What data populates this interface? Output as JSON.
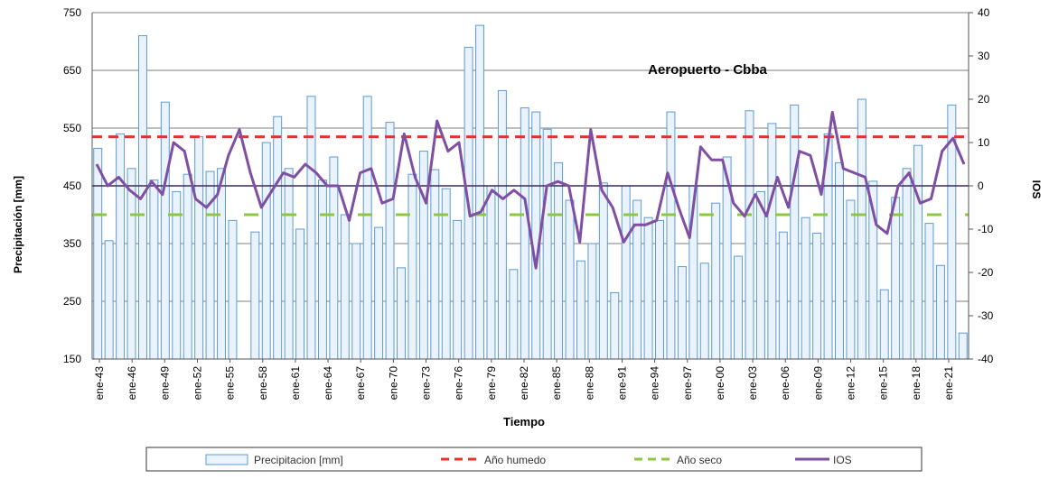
{
  "chart_data": {
    "type": "bar",
    "title": "Aeropuerto - Cbba",
    "xlabel": "Tiempo",
    "ylabel": "Precipitación [mm]",
    "y2label": "IOS",
    "ylim": [
      150,
      750
    ],
    "y2lim": [
      -40,
      40
    ],
    "yticks": [
      150,
      250,
      350,
      450,
      550,
      650,
      750
    ],
    "y2ticks": [
      -40,
      -30,
      -20,
      -10,
      0,
      10,
      20,
      30,
      40
    ],
    "x_tick_labels": [
      "ene-43",
      "ene-46",
      "ene-49",
      "ene-52",
      "ene-55",
      "ene-58",
      "ene-61",
      "ene-64",
      "ene-67",
      "ene-70",
      "ene-73",
      "ene-76",
      "ene-79",
      "ene-82",
      "ene-85",
      "ene-88",
      "ene-91",
      "ene-94",
      "ene-97",
      "ene-00",
      "ene-03",
      "ene-06",
      "ene-09",
      "ene-12",
      "ene-15",
      "ene-18",
      "ene-21"
    ],
    "grid": "horizontal",
    "legend_position": "bottom",
    "series": [
      {
        "name": "Precipitacion [mm]",
        "type": "bar",
        "axis": "left",
        "color": "#5b9bd5",
        "values": [
          515,
          355,
          540,
          480,
          710,
          460,
          595,
          440,
          470,
          535,
          475,
          480,
          390,
          150,
          370,
          525,
          570,
          480,
          375,
          605,
          460,
          500,
          400,
          350,
          605,
          378,
          560,
          308,
          470,
          510,
          478,
          445,
          390,
          690,
          728,
          450,
          615,
          305,
          585,
          578,
          548,
          490,
          425,
          320,
          350,
          455,
          265,
          450,
          425,
          395,
          390,
          578,
          310,
          450,
          316,
          420,
          500,
          328,
          580,
          440,
          558,
          370,
          590,
          395,
          368,
          540,
          490,
          425,
          600,
          458,
          270,
          430,
          480,
          520,
          385,
          312,
          590,
          195
        ]
      },
      {
        "name": "Año humedo",
        "type": "line",
        "style": "dashed",
        "axis": "left",
        "color": "#e2342b",
        "values": [
          535
        ]
      },
      {
        "name": "Año seco",
        "type": "line",
        "style": "dashed",
        "axis": "left",
        "color": "#8dc63f",
        "values": [
          400
        ]
      },
      {
        "name": "IOS",
        "type": "line",
        "axis": "right",
        "color": "#7f4fa3",
        "values": [
          5,
          0,
          2,
          -1,
          -3,
          1,
          -2,
          10,
          8,
          -3,
          -5,
          -2,
          7,
          13,
          3,
          -5,
          -1,
          3,
          2,
          5,
          3,
          0,
          0,
          -8,
          3,
          4,
          -4,
          -3,
          12,
          2,
          -4,
          15,
          8,
          10,
          -7,
          -6,
          -1,
          -3,
          -1,
          -3,
          -19,
          0,
          1,
          0,
          -13,
          13,
          -1,
          -5,
          -13,
          -9,
          -9,
          -8,
          3,
          -5,
          -12,
          9,
          6,
          6,
          -4,
          -7,
          -2,
          -7,
          2,
          -5,
          8,
          7,
          -2,
          17,
          4,
          3,
          2,
          -9,
          -11,
          0,
          3,
          -4,
          -3,
          8,
          11,
          5
        ]
      }
    ]
  }
}
